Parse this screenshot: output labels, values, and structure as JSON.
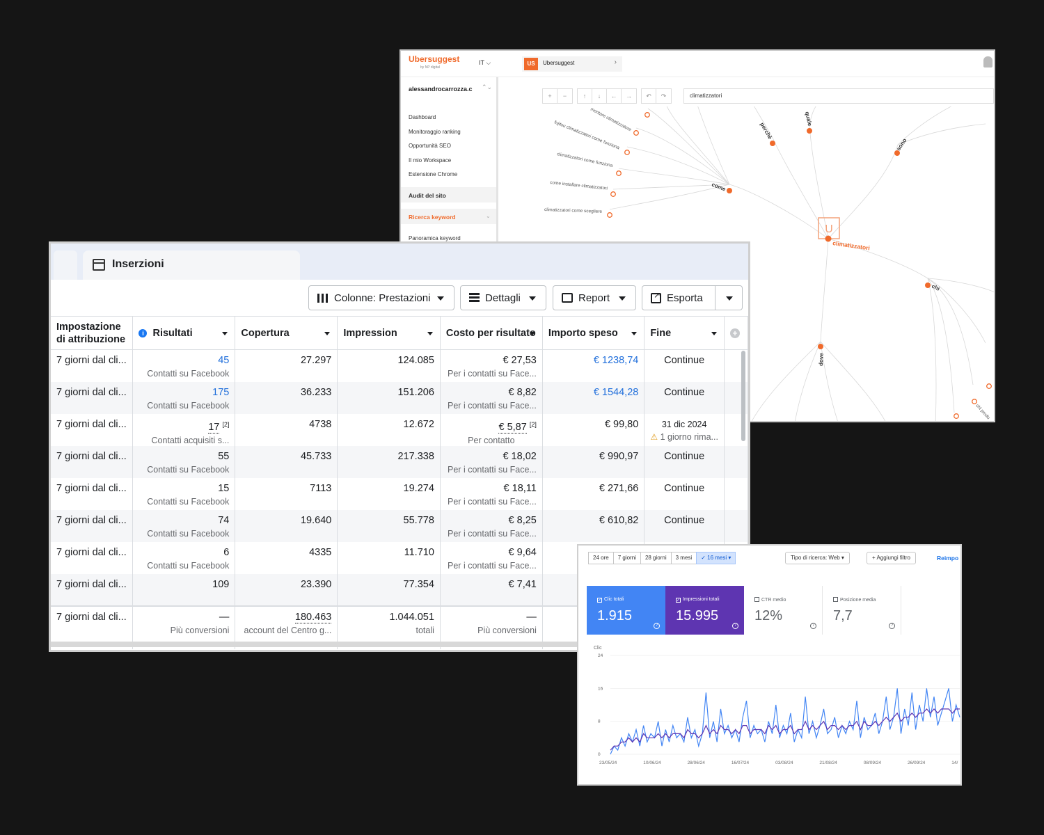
{
  "ubersuggest": {
    "logo": "Ubersuggest",
    "logo_sub": "by NP digital",
    "lang": "IT ⌵",
    "project_badge": "US",
    "project_name": "Ubersuggest",
    "project_chevron": "›",
    "account": "alessandrocarrozza.c",
    "account_chevron": "⌃⌄",
    "nav": [
      "Dashboard",
      "Monitoraggio ranking",
      "Opportunità SEO",
      "Il mio Workspace",
      "Estensione Chrome"
    ],
    "nav_section": "Audit del sito",
    "nav_active": "Ricerca keyword",
    "nav_active_chevron": "⌄",
    "nav_sub": "Panoramica keyword",
    "toolbar_zoom": [
      "+",
      "−"
    ],
    "toolbar_arrows": [
      "↑",
      "↓",
      "←",
      "→"
    ],
    "toolbar_history": [
      "↶",
      "↷"
    ],
    "search_value": "climatizzatori",
    "center_icon": "U",
    "center_label": "climatizzatori",
    "branches": [
      "come",
      "perchè",
      "quale",
      "sono",
      "chi",
      "dove"
    ],
    "come_leaves": [
      "montare climatizzatore",
      "fujitsu climatizzatori come funziona",
      "climatizzatori come funziona",
      "come installare climatizzatori",
      "climatizzatori come scegliere"
    ],
    "chi_leaves": [
      "chi produ"
    ]
  },
  "facebook": {
    "tab_title": "Inserzioni",
    "buttons": {
      "columns": "Colonne: Prestazioni",
      "details": "Dettagli",
      "report": "Report",
      "export": "Esporta"
    },
    "headers": [
      "Impostazione di attribuzione",
      "Risultati",
      "Copertura",
      "Impression",
      "Costo per risultato",
      "Importo speso",
      "Fine"
    ],
    "info_icon": "i",
    "add_column_icon": "+",
    "rows": [
      {
        "attr": "7 giorni dal cli...",
        "res": "45",
        "res_sub": "Contatti su Facebook",
        "reach": "27.297",
        "impr": "124.085",
        "cost": "€ 27,53",
        "cost_sub": "Per i contatti su Face...",
        "spent": "€ 1238,74",
        "end": "Continue"
      },
      {
        "attr": "7 giorni dal cli...",
        "res": "175",
        "res_sub": "Contatti su Facebook",
        "reach": "36.233",
        "impr": "151.206",
        "cost": "€ 8,82",
        "cost_sub": "Per i contatti su Face...",
        "spent": "€ 1544,28",
        "end": "Continue"
      },
      {
        "attr": "7 giorni dal cli...",
        "res": "17",
        "res_note": "[2]",
        "res_sub": "Contatti acquisiti s...",
        "reach": "4738",
        "impr": "12.672",
        "cost": "€ 5,87",
        "cost_note": "[2]",
        "cost_sub": "Per contatto",
        "spent": "€ 99,80",
        "end": "31 dic 2024",
        "end_warn": "⚠",
        "end_sub": "1 giorno rima..."
      },
      {
        "attr": "7 giorni dal cli...",
        "res": "55",
        "res_sub": "Contatti su Facebook",
        "reach": "45.733",
        "impr": "217.338",
        "cost": "€ 18,02",
        "cost_sub": "Per i contatti su Face...",
        "spent": "€ 990,97",
        "end": "Continue"
      },
      {
        "attr": "7 giorni dal cli...",
        "res": "15",
        "res_sub": "Contatti su Facebook",
        "reach": "7113",
        "impr": "19.274",
        "cost": "€ 18,11",
        "cost_sub": "Per i contatti su Face...",
        "spent": "€ 271,66",
        "end": "Continue"
      },
      {
        "attr": "7 giorni dal cli...",
        "res": "74",
        "res_sub": "Contatti su Facebook",
        "reach": "19.640",
        "impr": "55.778",
        "cost": "€ 8,25",
        "cost_sub": "Per i contatti su Face...",
        "spent": "€ 610,82",
        "end": "Continue"
      },
      {
        "attr": "7 giorni dal cli...",
        "res": "6",
        "res_sub": "Contatti su Facebook",
        "reach": "4335",
        "impr": "11.710",
        "cost": "€ 9,64",
        "cost_sub": "Per i contatti su Face...",
        "spent": "",
        "end": ""
      },
      {
        "attr": "7 giorni dal cli...",
        "res": "109",
        "res_sub": "",
        "reach": "23.390",
        "impr": "77.354",
        "cost": "€ 7,41",
        "cost_sub": "",
        "spent": "",
        "end": ""
      }
    ],
    "total": {
      "attr": "7 giorni dal cli...",
      "res": "—",
      "res_sub": "Più conversioni",
      "reach": "180.463",
      "reach_sub": "account del Centro g...",
      "impr": "1.044.051",
      "impr_sub": "totali",
      "cost": "—",
      "cost_sub": "Più conversioni"
    }
  },
  "search_console": {
    "ranges": [
      "24 ore",
      "7 giorni",
      "28 giorni",
      "3 mesi",
      "16 mesi"
    ],
    "selected_range_check": "✓",
    "selected_range_caret": "▾",
    "search_type": "Tipo di ricerca: Web ▾",
    "add_filter": "+ Aggiungi filtro",
    "reset": "Reimpo",
    "cards": [
      {
        "label": "Clic totali",
        "value": "1.915",
        "checked": "✓",
        "help": "?"
      },
      {
        "label": "Impressioni totali",
        "value": "15.995",
        "checked": "✓",
        "help": "?"
      },
      {
        "label": "CTR medio",
        "value": "12%",
        "checked": "",
        "help": "?"
      },
      {
        "label": "Posizione media",
        "value": "7,7",
        "checked": "",
        "help": "?"
      }
    ],
    "colors": {
      "clicks": "#4285f4",
      "impressions": "#5e35b1"
    }
  },
  "chart_data": {
    "type": "line",
    "ylabel": "Clic",
    "ylim": [
      0,
      24
    ],
    "yticks": [
      "24",
      "16",
      "8",
      "0"
    ],
    "xticks": [
      "23/05/24",
      "10/06/24",
      "28/06/24",
      "16/07/24",
      "03/08/24",
      "21/08/24",
      "08/09/24",
      "26/09/24",
      "14/"
    ],
    "series": [
      {
        "values": [
          0,
          2,
          1,
          4,
          2,
          5,
          3,
          6,
          2,
          7,
          3,
          5,
          4,
          8,
          2,
          6,
          3,
          7,
          4,
          5,
          3,
          9,
          4,
          6,
          2,
          5,
          15,
          4,
          8,
          3,
          11,
          5,
          7,
          4,
          6,
          3,
          9,
          13,
          4,
          7,
          5,
          6,
          3,
          8,
          5,
          12,
          4,
          7,
          5,
          10,
          3,
          6,
          4,
          14,
          5,
          8,
          4,
          7,
          11,
          5,
          6,
          9,
          4,
          7,
          5,
          8,
          6,
          13,
          4,
          9,
          6,
          7,
          10,
          5,
          8,
          14,
          6,
          9,
          16,
          5,
          11,
          7,
          15,
          6,
          12,
          8,
          16,
          9,
          14,
          7,
          10,
          13,
          16,
          8,
          12,
          9
        ]
      },
      {
        "values": [
          1,
          2,
          2,
          3,
          3,
          4,
          3,
          4,
          3,
          5,
          4,
          4,
          4,
          5,
          4,
          5,
          4,
          5,
          5,
          5,
          4,
          6,
          5,
          5,
          4,
          5,
          7,
          5,
          6,
          5,
          7,
          6,
          6,
          5,
          6,
          5,
          7,
          7,
          5,
          6,
          6,
          6,
          5,
          7,
          6,
          7,
          5,
          6,
          6,
          7,
          5,
          6,
          6,
          8,
          6,
          7,
          6,
          7,
          8,
          6,
          7,
          7,
          6,
          7,
          6,
          7,
          7,
          8,
          6,
          8,
          7,
          7,
          8,
          7,
          8,
          9,
          8,
          9,
          10,
          8,
          9,
          9,
          10,
          9,
          10,
          10,
          11,
          10,
          11,
          10,
          11,
          11,
          11,
          10,
          11,
          11
        ]
      }
    ]
  }
}
